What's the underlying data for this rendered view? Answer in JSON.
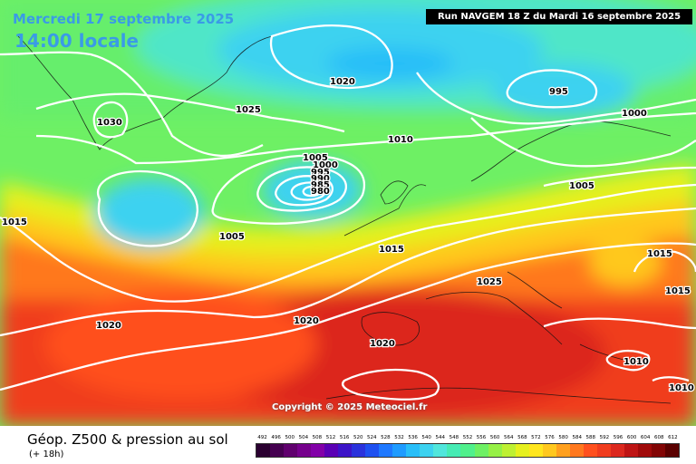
{
  "header": {
    "date_label": "Mercredi 17 septembre 2025",
    "time_label": "14:00 locale",
    "run_label": "Run NAVGEM 18 Z du Mardi 16 septembre 2025"
  },
  "copyright": "Copyright © 2025 Meteociel.fr",
  "footer": {
    "product_title": "Géop. Z500 & pression au sol",
    "lead_time": "(+ 18h)"
  },
  "legend": {
    "labels": [
      "492",
      "496",
      "500",
      "504",
      "508",
      "512",
      "516",
      "520",
      "524",
      "528",
      "532",
      "536",
      "540",
      "544",
      "548",
      "552",
      "556",
      "560",
      "564",
      "568",
      "572",
      "576",
      "580",
      "584",
      "588",
      "592",
      "596",
      "600",
      "604",
      "608",
      "612"
    ],
    "colors": [
      "#2a0030",
      "#450050",
      "#60006e",
      "#75008c",
      "#8200a8",
      "#5a00b4",
      "#3c14c8",
      "#2a32dc",
      "#1e50f0",
      "#1e78ff",
      "#1e9bff",
      "#28bef8",
      "#3cd2f0",
      "#50e6dc",
      "#46ebb4",
      "#50f08c",
      "#6ef064",
      "#96f046",
      "#bef032",
      "#e6f01e",
      "#ffe61e",
      "#ffc81e",
      "#ffa01e",
      "#ff781e",
      "#ff501e",
      "#f03c1e",
      "#dc281e",
      "#be1414",
      "#a00a0a",
      "#820505",
      "#5a0000"
    ]
  },
  "isobars": [
    "1030",
    "1025",
    "1020",
    "1010",
    "1005",
    "1000",
    "995",
    "990",
    "985",
    "980",
    "1015",
    "1005",
    "1015",
    "1020",
    "1020",
    "1020",
    "1025",
    "1000",
    "1005",
    "995",
    "1015",
    "1015",
    "1010",
    "1010"
  ],
  "colors": {
    "isobar": "#ffffff",
    "sea_blue": "#3a9be6"
  }
}
